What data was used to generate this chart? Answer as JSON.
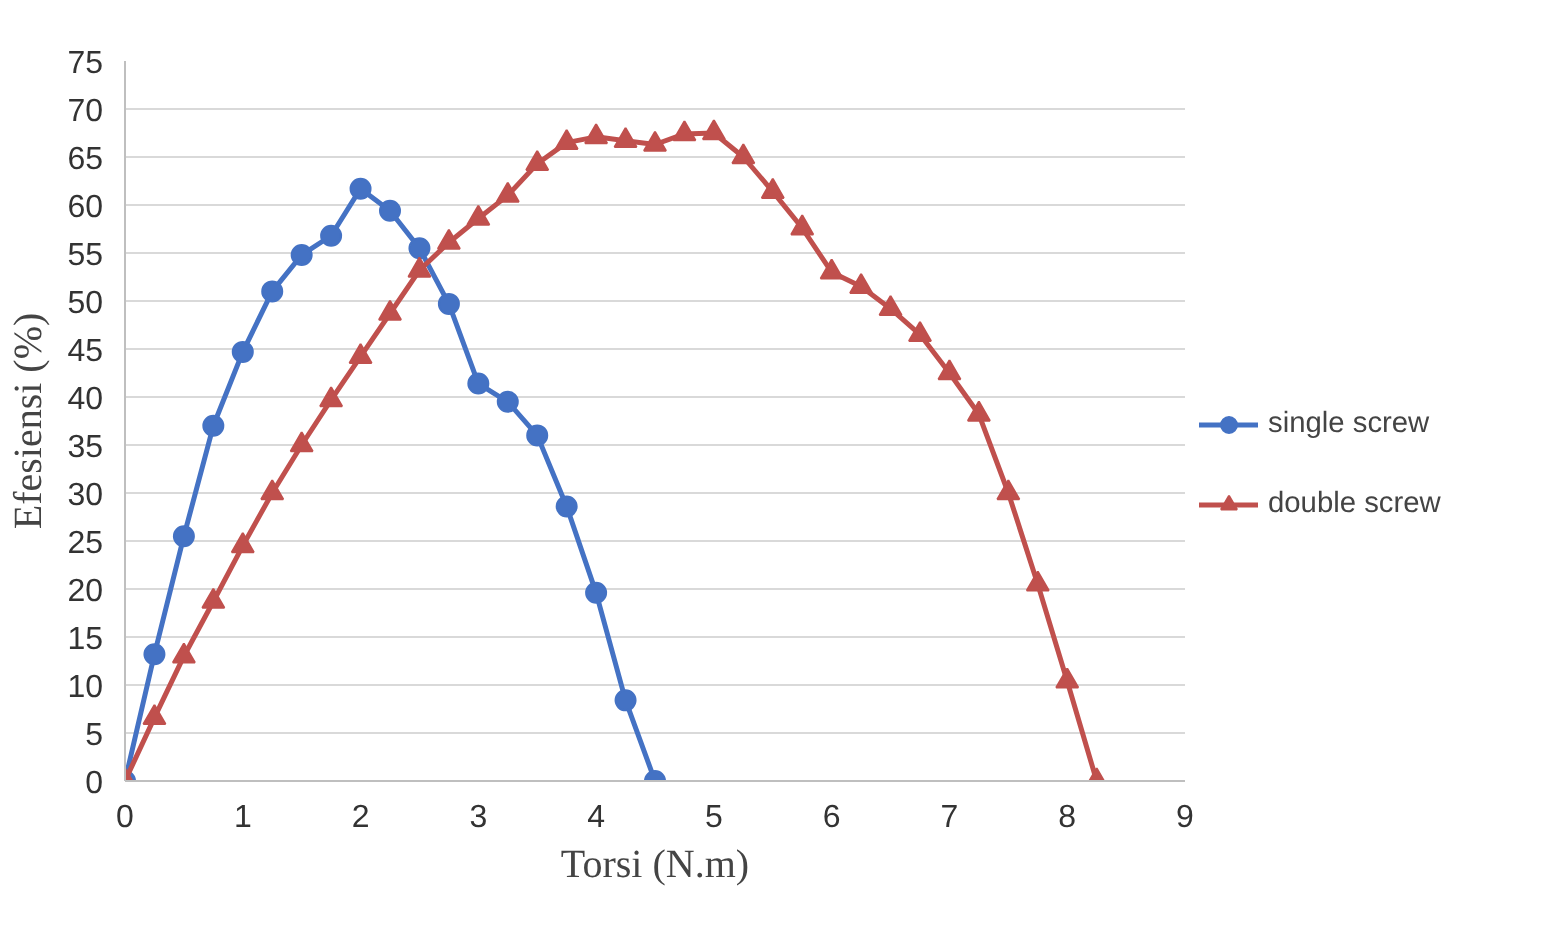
{
  "chart_data": {
    "type": "line",
    "xlabel": "Torsi (N.m)",
    "ylabel": "Efesiensi (%)",
    "xlim": [
      0,
      9
    ],
    "xticks": [
      0,
      1,
      2,
      3,
      4,
      5,
      6,
      7,
      8,
      9
    ],
    "ylim": [
      0,
      75
    ],
    "yticks": [
      0,
      5,
      10,
      15,
      20,
      25,
      30,
      35,
      40,
      45,
      50,
      55,
      60,
      65,
      70,
      75
    ],
    "grid": "y",
    "legend": "right",
    "series": [
      {
        "name": "single screw",
        "color": "#4472c4",
        "marker": "circle",
        "x": [
          0,
          0.25,
          0.5,
          0.75,
          1,
          1.25,
          1.5,
          1.75,
          2,
          2.25,
          2.5,
          2.75,
          3,
          3.25,
          3.5,
          3.75,
          4,
          4.25,
          4.5
        ],
        "values": [
          0,
          13.2,
          25.5,
          37,
          44.7,
          51,
          54.8,
          56.8,
          61.7,
          59.4,
          55.5,
          49.7,
          41.4,
          39.5,
          36,
          28.6,
          19.6,
          8.4,
          0
        ]
      },
      {
        "name": "double screw",
        "color": "#c0504d",
        "marker": "triangle",
        "x": [
          0,
          0.25,
          0.5,
          0.75,
          1,
          1.25,
          1.5,
          1.75,
          2,
          2.25,
          2.5,
          2.75,
          3,
          3.25,
          3.5,
          3.75,
          4,
          4.25,
          4.5,
          4.75,
          5,
          5.25,
          5.5,
          5.75,
          6,
          6.25,
          6.5,
          6.75,
          7,
          7.25,
          7.5,
          7.75,
          8,
          8.25
        ],
        "values": [
          0,
          6.6,
          13,
          18.7,
          24.5,
          30,
          35,
          39.7,
          44.2,
          48.7,
          53.2,
          56.1,
          58.6,
          61,
          64.3,
          66.5,
          67.1,
          66.7,
          66.3,
          67.4,
          67.5,
          65,
          61.4,
          57.6,
          53,
          51.5,
          49.2,
          46.5,
          42.5,
          38.2,
          30,
          20.5,
          10.4,
          0
        ]
      }
    ]
  }
}
